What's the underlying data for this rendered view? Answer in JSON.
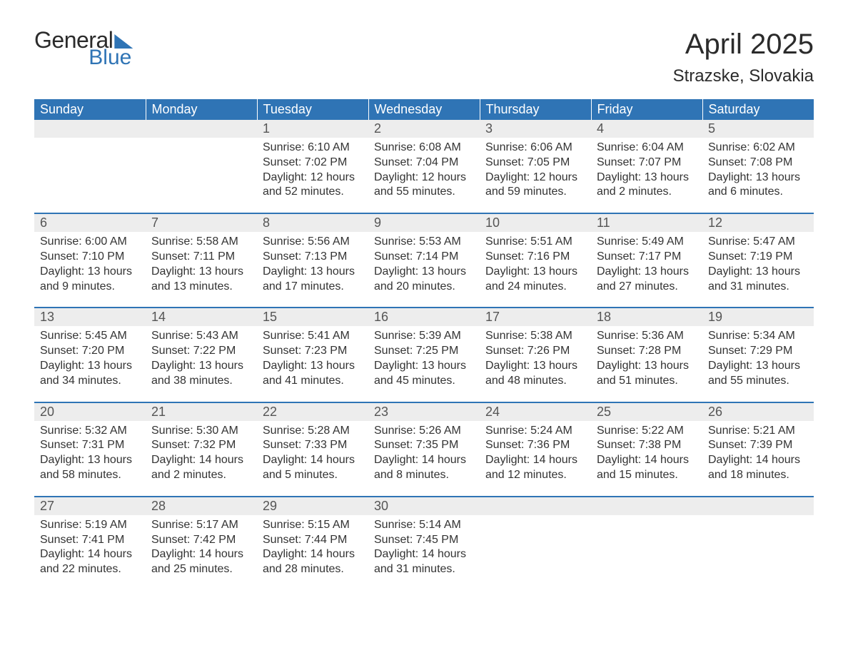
{
  "logo": {
    "word1": "General",
    "word2": "Blue",
    "word1_color": "#2b2b2b",
    "word2_color": "#2f74b5",
    "flag_color": "#2f74b5"
  },
  "title": "April 2025",
  "location": "Strazske, Slovakia",
  "colors": {
    "header_bg": "#2f74b5",
    "header_text": "#ffffff",
    "daynum_bg": "#ededed",
    "daynum_text": "#555555",
    "body_text": "#333333",
    "rule": "#2f74b5",
    "page_bg": "#ffffff"
  },
  "typography": {
    "title_fontsize": 40,
    "location_fontsize": 24,
    "dayheader_fontsize": 18,
    "daynum_fontsize": 18,
    "detail_fontsize": 16,
    "font_family": "Arial"
  },
  "day_headers": [
    "Sunday",
    "Monday",
    "Tuesday",
    "Wednesday",
    "Thursday",
    "Friday",
    "Saturday"
  ],
  "labels": {
    "sunrise": "Sunrise: ",
    "sunset": "Sunset: ",
    "daylight": "Daylight: "
  },
  "weeks": [
    [
      null,
      null,
      {
        "n": "1",
        "sunrise": "6:10 AM",
        "sunset": "7:02 PM",
        "daylight": "12 hours and 52 minutes."
      },
      {
        "n": "2",
        "sunrise": "6:08 AM",
        "sunset": "7:04 PM",
        "daylight": "12 hours and 55 minutes."
      },
      {
        "n": "3",
        "sunrise": "6:06 AM",
        "sunset": "7:05 PM",
        "daylight": "12 hours and 59 minutes."
      },
      {
        "n": "4",
        "sunrise": "6:04 AM",
        "sunset": "7:07 PM",
        "daylight": "13 hours and 2 minutes."
      },
      {
        "n": "5",
        "sunrise": "6:02 AM",
        "sunset": "7:08 PM",
        "daylight": "13 hours and 6 minutes."
      }
    ],
    [
      {
        "n": "6",
        "sunrise": "6:00 AM",
        "sunset": "7:10 PM",
        "daylight": "13 hours and 9 minutes."
      },
      {
        "n": "7",
        "sunrise": "5:58 AM",
        "sunset": "7:11 PM",
        "daylight": "13 hours and 13 minutes."
      },
      {
        "n": "8",
        "sunrise": "5:56 AM",
        "sunset": "7:13 PM",
        "daylight": "13 hours and 17 minutes."
      },
      {
        "n": "9",
        "sunrise": "5:53 AM",
        "sunset": "7:14 PM",
        "daylight": "13 hours and 20 minutes."
      },
      {
        "n": "10",
        "sunrise": "5:51 AM",
        "sunset": "7:16 PM",
        "daylight": "13 hours and 24 minutes."
      },
      {
        "n": "11",
        "sunrise": "5:49 AM",
        "sunset": "7:17 PM",
        "daylight": "13 hours and 27 minutes."
      },
      {
        "n": "12",
        "sunrise": "5:47 AM",
        "sunset": "7:19 PM",
        "daylight": "13 hours and 31 minutes."
      }
    ],
    [
      {
        "n": "13",
        "sunrise": "5:45 AM",
        "sunset": "7:20 PM",
        "daylight": "13 hours and 34 minutes."
      },
      {
        "n": "14",
        "sunrise": "5:43 AM",
        "sunset": "7:22 PM",
        "daylight": "13 hours and 38 minutes."
      },
      {
        "n": "15",
        "sunrise": "5:41 AM",
        "sunset": "7:23 PM",
        "daylight": "13 hours and 41 minutes."
      },
      {
        "n": "16",
        "sunrise": "5:39 AM",
        "sunset": "7:25 PM",
        "daylight": "13 hours and 45 minutes."
      },
      {
        "n": "17",
        "sunrise": "5:38 AM",
        "sunset": "7:26 PM",
        "daylight": "13 hours and 48 minutes."
      },
      {
        "n": "18",
        "sunrise": "5:36 AM",
        "sunset": "7:28 PM",
        "daylight": "13 hours and 51 minutes."
      },
      {
        "n": "19",
        "sunrise": "5:34 AM",
        "sunset": "7:29 PM",
        "daylight": "13 hours and 55 minutes."
      }
    ],
    [
      {
        "n": "20",
        "sunrise": "5:32 AM",
        "sunset": "7:31 PM",
        "daylight": "13 hours and 58 minutes."
      },
      {
        "n": "21",
        "sunrise": "5:30 AM",
        "sunset": "7:32 PM",
        "daylight": "14 hours and 2 minutes."
      },
      {
        "n": "22",
        "sunrise": "5:28 AM",
        "sunset": "7:33 PM",
        "daylight": "14 hours and 5 minutes."
      },
      {
        "n": "23",
        "sunrise": "5:26 AM",
        "sunset": "7:35 PM",
        "daylight": "14 hours and 8 minutes."
      },
      {
        "n": "24",
        "sunrise": "5:24 AM",
        "sunset": "7:36 PM",
        "daylight": "14 hours and 12 minutes."
      },
      {
        "n": "25",
        "sunrise": "5:22 AM",
        "sunset": "7:38 PM",
        "daylight": "14 hours and 15 minutes."
      },
      {
        "n": "26",
        "sunrise": "5:21 AM",
        "sunset": "7:39 PM",
        "daylight": "14 hours and 18 minutes."
      }
    ],
    [
      {
        "n": "27",
        "sunrise": "5:19 AM",
        "sunset": "7:41 PM",
        "daylight": "14 hours and 22 minutes."
      },
      {
        "n": "28",
        "sunrise": "5:17 AM",
        "sunset": "7:42 PM",
        "daylight": "14 hours and 25 minutes."
      },
      {
        "n": "29",
        "sunrise": "5:15 AM",
        "sunset": "7:44 PM",
        "daylight": "14 hours and 28 minutes."
      },
      {
        "n": "30",
        "sunrise": "5:14 AM",
        "sunset": "7:45 PM",
        "daylight": "14 hours and 31 minutes."
      },
      null,
      null,
      null
    ]
  ]
}
